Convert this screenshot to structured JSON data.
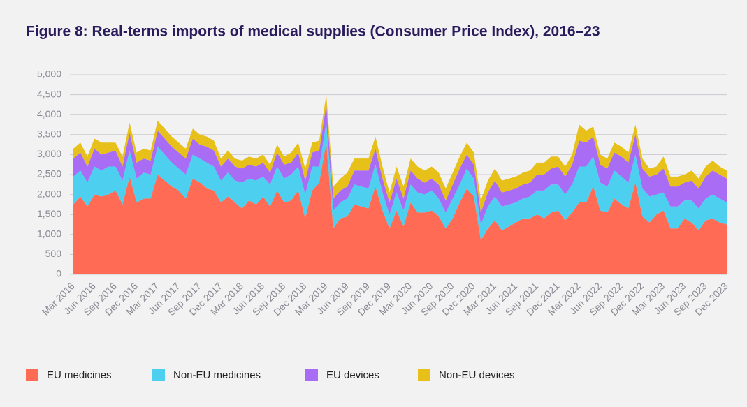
{
  "chart_data": {
    "type": "stacked_area",
    "title": "Figure 8: Real-terms imports of medical supplies (Consumer Price Index), 2016–23",
    "categories": [
      "Mar 2016",
      null,
      null,
      "Jun 2016",
      null,
      null,
      "Sep 2016",
      null,
      null,
      "Dec 2016",
      null,
      null,
      "Mar 2017",
      null,
      null,
      "Jun 2017",
      null,
      null,
      "Sep 2017",
      null,
      null,
      "Dec 2017",
      null,
      null,
      "Mar 2018",
      null,
      null,
      "Jun 2018",
      null,
      null,
      "Sep 2018",
      null,
      null,
      "Dec 2018",
      null,
      null,
      "Mar 2019",
      null,
      null,
      "Jun 2019",
      null,
      null,
      "Sep 2019",
      null,
      null,
      "Dec 2019",
      null,
      null,
      "Mar 2020",
      null,
      null,
      "Jun 2020",
      null,
      null,
      "Sep 2020",
      null,
      null,
      "Dec 2020",
      null,
      null,
      "Mar 2021",
      null,
      null,
      "Jun 2021",
      null,
      null,
      "Sep 2021",
      null,
      null,
      "Dec 2021",
      null,
      null,
      "Mar 2022",
      null,
      null,
      "Jun 2022",
      null,
      null,
      "Sep 2022",
      null,
      null,
      "Dec 2022",
      null,
      null,
      "Mar 2023",
      null,
      null,
      "Jun 2023",
      null,
      null,
      "Sep 2023",
      null,
      null,
      "Dec 2023"
    ],
    "series": [
      {
        "name": "EU medicines",
        "color": "#ff6b55",
        "values": [
          1750,
          1950,
          1700,
          2000,
          1950,
          2000,
          2100,
          1750,
          2450,
          1800,
          1900,
          1900,
          2500,
          2350,
          2200,
          2100,
          1900,
          2400,
          2300,
          2150,
          2100,
          1800,
          1950,
          1800,
          1650,
          1850,
          1750,
          1950,
          1700,
          2100,
          1800,
          1850,
          2100,
          1400,
          2100,
          2300,
          3300,
          1150,
          1400,
          1450,
          1750,
          1700,
          1650,
          2200,
          1600,
          1150,
          1600,
          1200,
          1800,
          1550,
          1550,
          1600,
          1450,
          1150,
          1400,
          1800,
          2150,
          1950,
          850,
          1150,
          1350,
          1100,
          1200,
          1300,
          1400,
          1400,
          1500,
          1400,
          1550,
          1600,
          1350,
          1550,
          1800,
          1800,
          2200,
          1600,
          1550,
          1900,
          1750,
          1650,
          2300,
          1450,
          1300,
          1500,
          1600,
          1150,
          1150,
          1400,
          1300,
          1100,
          1350,
          1400,
          1300,
          1250
        ]
      },
      {
        "name": "Non-EU medicines",
        "color": "#4dd0f0",
        "values": [
          700,
          650,
          600,
          700,
          650,
          700,
          600,
          600,
          650,
          600,
          650,
          600,
          700,
          650,
          600,
          550,
          600,
          600,
          600,
          650,
          600,
          550,
          600,
          550,
          650,
          550,
          600,
          500,
          550,
          600,
          600,
          650,
          600,
          600,
          600,
          400,
          500,
          450,
          400,
          450,
          500,
          500,
          500,
          550,
          450,
          350,
          450,
          400,
          450,
          500,
          450,
          500,
          450,
          400,
          500,
          450,
          500,
          450,
          400,
          550,
          600,
          600,
          550,
          500,
          500,
          550,
          600,
          700,
          700,
          650,
          650,
          700,
          900,
          900,
          750,
          700,
          650,
          700,
          700,
          650,
          700,
          700,
          650,
          500,
          450,
          550,
          550,
          450,
          550,
          550,
          550,
          600,
          600,
          550
        ]
      },
      {
        "name": "EU devices",
        "color": "#a86cf5",
        "values": [
          450,
          450,
          400,
          450,
          400,
          350,
          400,
          350,
          450,
          400,
          350,
          350,
          400,
          400,
          400,
          400,
          400,
          400,
          350,
          400,
          400,
          350,
          350,
          350,
          350,
          350,
          350,
          350,
          300,
          350,
          350,
          300,
          350,
          350,
          350,
          400,
          450,
          300,
          300,
          300,
          350,
          400,
          450,
          400,
          350,
          300,
          350,
          300,
          350,
          350,
          300,
          300,
          350,
          300,
          350,
          400,
          350,
          350,
          300,
          350,
          400,
          350,
          350,
          350,
          350,
          350,
          400,
          400,
          400,
          450,
          450,
          500,
          650,
          600,
          500,
          450,
          450,
          450,
          500,
          500,
          500,
          500,
          500,
          500,
          600,
          500,
          500,
          450,
          500,
          500,
          550,
          600,
          600,
          600
        ]
      },
      {
        "name": "Non-EU devices",
        "color": "#e8c01a",
        "values": [
          250,
          250,
          250,
          250,
          300,
          250,
          200,
          250,
          250,
          250,
          250,
          250,
          250,
          250,
          250,
          250,
          250,
          250,
          250,
          250,
          250,
          200,
          200,
          200,
          200,
          200,
          200,
          200,
          200,
          200,
          200,
          250,
          250,
          300,
          250,
          250,
          250,
          300,
          300,
          350,
          300,
          300,
          300,
          300,
          300,
          250,
          300,
          300,
          300,
          300,
          300,
          300,
          300,
          300,
          300,
          300,
          300,
          300,
          300,
          300,
          300,
          300,
          300,
          300,
          300,
          300,
          300,
          300,
          300,
          250,
          250,
          250,
          400,
          300,
          250,
          250,
          250,
          250,
          250,
          250,
          250,
          250,
          200,
          200,
          300,
          250,
          250,
          200,
          250,
          250,
          250,
          250,
          200,
          200
        ]
      }
    ],
    "ylim": [
      0,
      5000
    ],
    "yticks": [
      {
        "value": 0,
        "label": "0"
      },
      {
        "value": 500,
        "label": "500"
      },
      {
        "value": 1000,
        "label": "1,000"
      },
      {
        "value": 1500,
        "label": "1,500"
      },
      {
        "value": 2000,
        "label": "2,000"
      },
      {
        "value": 2500,
        "label": "2,500"
      },
      {
        "value": 3000,
        "label": "3,000"
      },
      {
        "value": 3500,
        "label": "3,500"
      },
      {
        "value": 4000,
        "label": "4,000"
      },
      {
        "value": 4500,
        "label": "4,500"
      },
      {
        "value": 5000,
        "label": "5,000"
      }
    ],
    "grid": true,
    "legend": "bottom"
  }
}
